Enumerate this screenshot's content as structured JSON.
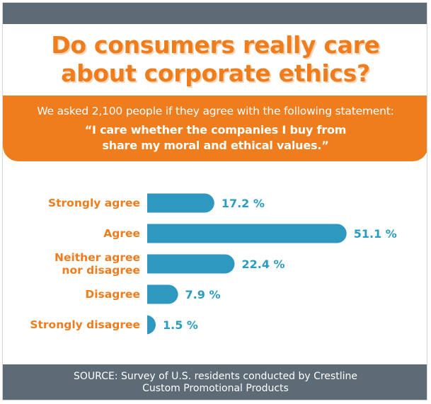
{
  "title": {
    "line1": "Do consumers really care",
    "line2": "about corporate ethics?"
  },
  "banner": {
    "intro": "We asked 2,100 people if they agree with the following statement:",
    "quote_line1": "“I care whether the companies I buy from",
    "quote_line2": "share my moral and ethical values.”"
  },
  "chart_data": {
    "type": "bar",
    "orientation": "horizontal",
    "title": "",
    "xlabel": "",
    "ylabel": "",
    "categories": [
      [
        "Strongly agree"
      ],
      [
        "Agree"
      ],
      [
        "Neither agree",
        "nor disagree"
      ],
      [
        "Disagree"
      ],
      [
        "Strongly disagree"
      ]
    ],
    "values": [
      17.2,
      51.1,
      22.4,
      7.9,
      1.5
    ],
    "value_labels": [
      "17.2 %",
      "51.1 %",
      "22.4 %",
      "7.9 %",
      "1.5 %"
    ],
    "xlim": [
      0,
      55
    ],
    "grid": false,
    "legend": "none"
  },
  "colors": {
    "accent": "#ef7d1e",
    "bar": "#2f98c0",
    "value_text": "#2a9bc1",
    "header_footer": "#5d6b77"
  },
  "footer": {
    "line1": "SOURCE: Survey of U.S. residents conducted by Crestline",
    "line2": "Custom Promotional Products"
  }
}
